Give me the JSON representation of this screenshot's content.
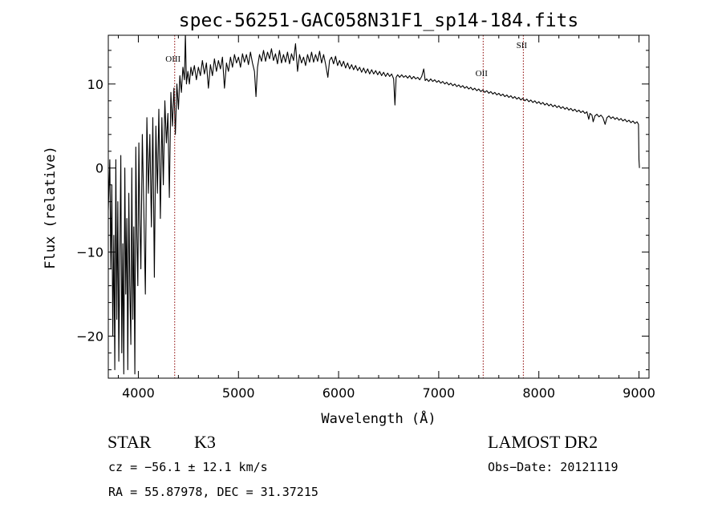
{
  "chart_data": {
    "type": "line",
    "title": "spec-56251-GAC058N31F1_sp14-184.fits",
    "xlabel": "Wavelength (Å)",
    "ylabel": "Flux (relative)",
    "xlim": [
      3700,
      9100
    ],
    "ylim": [
      -25,
      15.8
    ],
    "xticks": [
      4000,
      5000,
      6000,
      7000,
      8000,
      9000
    ],
    "yticks": [
      -20,
      -10,
      0,
      10
    ],
    "grid": false,
    "series": [
      {
        "points": [
          [
            3700,
            -5
          ],
          [
            3715,
            1
          ],
          [
            3725,
            -12
          ],
          [
            3735,
            -2
          ],
          [
            3745,
            -20
          ],
          [
            3755,
            -8
          ],
          [
            3765,
            -24
          ],
          [
            3775,
            1
          ],
          [
            3785,
            -18
          ],
          [
            3795,
            -4
          ],
          [
            3805,
            -23
          ],
          [
            3815,
            -10
          ],
          [
            3825,
            1.5
          ],
          [
            3835,
            -22
          ],
          [
            3845,
            -9
          ],
          [
            3855,
            -24.5
          ],
          [
            3865,
            0
          ],
          [
            3875,
            -15
          ],
          [
            3885,
            -6
          ],
          [
            3895,
            -24
          ],
          [
            3905,
            -3
          ],
          [
            3915,
            -14
          ],
          [
            3925,
            -21
          ],
          [
            3935,
            0
          ],
          [
            3945,
            -18
          ],
          [
            3955,
            -7
          ],
          [
            3965,
            -24.5
          ],
          [
            3975,
            2.5
          ],
          [
            3985,
            -8
          ],
          [
            3995,
            -14
          ],
          [
            4005,
            3
          ],
          [
            4015,
            -6
          ],
          [
            4025,
            -12
          ],
          [
            4040,
            4
          ],
          [
            4055,
            -5
          ],
          [
            4070,
            -15
          ],
          [
            4085,
            6
          ],
          [
            4100,
            -3
          ],
          [
            4115,
            4
          ],
          [
            4130,
            -7
          ],
          [
            4145,
            6
          ],
          [
            4160,
            -13
          ],
          [
            4175,
            5
          ],
          [
            4190,
            -3
          ],
          [
            4205,
            7
          ],
          [
            4220,
            -6
          ],
          [
            4235,
            6
          ],
          [
            4250,
            -2
          ],
          [
            4265,
            8
          ],
          [
            4280,
            3
          ],
          [
            4295,
            6.5
          ],
          [
            4310,
            -3.5
          ],
          [
            4325,
            9
          ],
          [
            4340,
            5
          ],
          [
            4355,
            9.5
          ],
          [
            4370,
            4
          ],
          [
            4385,
            10
          ],
          [
            4400,
            7
          ],
          [
            4415,
            11
          ],
          [
            4430,
            9
          ],
          [
            4445,
            12
          ],
          [
            4460,
            10.5
          ],
          [
            4470,
            16
          ],
          [
            4480,
            10
          ],
          [
            4495,
            11.5
          ],
          [
            4510,
            10
          ],
          [
            4525,
            12
          ],
          [
            4540,
            11
          ],
          [
            4560,
            12.2
          ],
          [
            4580,
            10.5
          ],
          [
            4600,
            12
          ],
          [
            4620,
            11
          ],
          [
            4640,
            12.8
          ],
          [
            4660,
            11.2
          ],
          [
            4680,
            12.5
          ],
          [
            4700,
            9.5
          ],
          [
            4720,
            12.3
          ],
          [
            4740,
            11
          ],
          [
            4760,
            13
          ],
          [
            4780,
            11.5
          ],
          [
            4800,
            12.8
          ],
          [
            4820,
            11.8
          ],
          [
            4840,
            13.2
          ],
          [
            4860,
            9.5
          ],
          [
            4880,
            12.5
          ],
          [
            4900,
            11.5
          ],
          [
            4920,
            13.2
          ],
          [
            4940,
            12
          ],
          [
            4960,
            13.5
          ],
          [
            4980,
            12.5
          ],
          [
            5000,
            13.2
          ],
          [
            5020,
            12
          ],
          [
            5040,
            13.6
          ],
          [
            5060,
            12.6
          ],
          [
            5080,
            13.5
          ],
          [
            5100,
            12.3
          ],
          [
            5120,
            13.8
          ],
          [
            5140,
            12.5
          ],
          [
            5160,
            11.5
          ],
          [
            5175,
            8.5
          ],
          [
            5190,
            12
          ],
          [
            5210,
            13.5
          ],
          [
            5230,
            12.7
          ],
          [
            5250,
            14
          ],
          [
            5270,
            12.7
          ],
          [
            5290,
            13.8
          ],
          [
            5310,
            13
          ],
          [
            5330,
            14.2
          ],
          [
            5350,
            12.8
          ],
          [
            5370,
            13.6
          ],
          [
            5390,
            12.4
          ],
          [
            5410,
            14
          ],
          [
            5430,
            12.5
          ],
          [
            5450,
            13.5
          ],
          [
            5470,
            12.6
          ],
          [
            5490,
            13.8
          ],
          [
            5510,
            12.4
          ],
          [
            5530,
            13.6
          ],
          [
            5550,
            12.8
          ],
          [
            5570,
            14.8
          ],
          [
            5590,
            11.5
          ],
          [
            5610,
            13.5
          ],
          [
            5630,
            12.5
          ],
          [
            5650,
            13.2
          ],
          [
            5670,
            12.2
          ],
          [
            5690,
            13.5
          ],
          [
            5710,
            12.6
          ],
          [
            5730,
            13.8
          ],
          [
            5750,
            12.6
          ],
          [
            5770,
            13.5
          ],
          [
            5790,
            12.7
          ],
          [
            5810,
            13.9
          ],
          [
            5830,
            12.5
          ],
          [
            5850,
            13.5
          ],
          [
            5870,
            12.4
          ],
          [
            5893,
            10.8
          ],
          [
            5910,
            12.8
          ],
          [
            5930,
            13.2
          ],
          [
            5950,
            12.4
          ],
          [
            5970,
            13.3
          ],
          [
            5990,
            12.2
          ],
          [
            6010,
            12.8
          ],
          [
            6030,
            12.1
          ],
          [
            6050,
            12.7
          ],
          [
            6070,
            11.9
          ],
          [
            6090,
            12.5
          ],
          [
            6110,
            11.8
          ],
          [
            6130,
            12.3
          ],
          [
            6150,
            11.7
          ],
          [
            6170,
            12.2
          ],
          [
            6190,
            11.6
          ],
          [
            6210,
            12
          ],
          [
            6230,
            11.4
          ],
          [
            6250,
            11.9
          ],
          [
            6270,
            11.3
          ],
          [
            6290,
            11.8
          ],
          [
            6310,
            11.2
          ],
          [
            6330,
            11.7
          ],
          [
            6350,
            11.2
          ],
          [
            6370,
            11.6
          ],
          [
            6390,
            11.1
          ],
          [
            6410,
            11.5
          ],
          [
            6430,
            11
          ],
          [
            6450,
            11.4
          ],
          [
            6470,
            10.9
          ],
          [
            6490,
            11.3
          ],
          [
            6510,
            10.9
          ],
          [
            6530,
            11.2
          ],
          [
            6550,
            10.6
          ],
          [
            6563,
            7.5
          ],
          [
            6575,
            10.8
          ],
          [
            6590,
            11.1
          ],
          [
            6610,
            10.8
          ],
          [
            6630,
            11.1
          ],
          [
            6650,
            10.8
          ],
          [
            6670,
            11
          ],
          [
            6690,
            10.7
          ],
          [
            6710,
            11
          ],
          [
            6730,
            10.6
          ],
          [
            6750,
            10.9
          ],
          [
            6770,
            10.6
          ],
          [
            6790,
            10.8
          ],
          [
            6810,
            10.5
          ],
          [
            6830,
            10.9
          ],
          [
            6850,
            11.8
          ],
          [
            6865,
            10.4
          ],
          [
            6880,
            10.6
          ],
          [
            6900,
            10.3
          ],
          [
            6920,
            10.6
          ],
          [
            6940,
            10.3
          ],
          [
            6960,
            10.5
          ],
          [
            6980,
            10.2
          ],
          [
            7000,
            10.4
          ],
          [
            7020,
            10.1
          ],
          [
            7040,
            10.3
          ],
          [
            7060,
            10
          ],
          [
            7080,
            10.2
          ],
          [
            7100,
            9.9
          ],
          [
            7120,
            10.1
          ],
          [
            7140,
            9.8
          ],
          [
            7160,
            10
          ],
          [
            7180,
            9.7
          ],
          [
            7200,
            9.9
          ],
          [
            7220,
            9.6
          ],
          [
            7240,
            9.8
          ],
          [
            7260,
            9.5
          ],
          [
            7280,
            9.7
          ],
          [
            7300,
            9.4
          ],
          [
            7320,
            9.6
          ],
          [
            7340,
            9.3
          ],
          [
            7360,
            9.5
          ],
          [
            7380,
            9.2
          ],
          [
            7400,
            9.4
          ],
          [
            7420,
            9.1
          ],
          [
            7440,
            9.3
          ],
          [
            7460,
            9
          ],
          [
            7480,
            9.2
          ],
          [
            7500,
            8.9
          ],
          [
            7520,
            9.1
          ],
          [
            7540,
            8.8
          ],
          [
            7560,
            9
          ],
          [
            7580,
            8.7
          ],
          [
            7600,
            8.9
          ],
          [
            7620,
            8.6
          ],
          [
            7640,
            8.8
          ],
          [
            7660,
            8.5
          ],
          [
            7680,
            8.7
          ],
          [
            7700,
            8.4
          ],
          [
            7720,
            8.6
          ],
          [
            7740,
            8.3
          ],
          [
            7760,
            8.5
          ],
          [
            7780,
            8.2
          ],
          [
            7800,
            8.4
          ],
          [
            7820,
            8.1
          ],
          [
            7840,
            8.3
          ],
          [
            7860,
            8
          ],
          [
            7880,
            8.2
          ],
          [
            7900,
            7.9
          ],
          [
            7920,
            8.1
          ],
          [
            7940,
            7.8
          ],
          [
            7960,
            8
          ],
          [
            7980,
            7.7
          ],
          [
            8000,
            7.9
          ],
          [
            8020,
            7.6
          ],
          [
            8040,
            7.8
          ],
          [
            8060,
            7.5
          ],
          [
            8080,
            7.7
          ],
          [
            8100,
            7.4
          ],
          [
            8120,
            7.6
          ],
          [
            8140,
            7.3
          ],
          [
            8160,
            7.5
          ],
          [
            8180,
            7.2
          ],
          [
            8200,
            7.4
          ],
          [
            8220,
            7.1
          ],
          [
            8240,
            7.3
          ],
          [
            8260,
            7
          ],
          [
            8280,
            7.2
          ],
          [
            8300,
            6.9
          ],
          [
            8320,
            7.1
          ],
          [
            8340,
            6.8
          ],
          [
            8360,
            7
          ],
          [
            8380,
            6.7
          ],
          [
            8400,
            6.9
          ],
          [
            8420,
            6.6
          ],
          [
            8440,
            6.8
          ],
          [
            8460,
            6.5
          ],
          [
            8480,
            6.7
          ],
          [
            8498,
            5.8
          ],
          [
            8510,
            6.5
          ],
          [
            8530,
            6.3
          ],
          [
            8542,
            5.5
          ],
          [
            8560,
            6.2
          ],
          [
            8580,
            6.4
          ],
          [
            8600,
            6.1
          ],
          [
            8620,
            6.3
          ],
          [
            8640,
            6
          ],
          [
            8662,
            5.2
          ],
          [
            8680,
            6
          ],
          [
            8700,
            6.2
          ],
          [
            8720,
            5.9
          ],
          [
            8740,
            6.1
          ],
          [
            8760,
            5.8
          ],
          [
            8780,
            6
          ],
          [
            8800,
            5.7
          ],
          [
            8820,
            5.9
          ],
          [
            8840,
            5.6
          ],
          [
            8860,
            5.8
          ],
          [
            8880,
            5.5
          ],
          [
            8900,
            5.7
          ],
          [
            8920,
            5.4
          ],
          [
            8940,
            5.6
          ],
          [
            8960,
            5.3
          ],
          [
            8980,
            5.5
          ],
          [
            8995,
            5.2
          ],
          [
            9000,
            1
          ],
          [
            9005,
            0
          ]
        ]
      }
    ],
    "lines": [
      {
        "x": 4363,
        "label": "OIII"
      },
      {
        "x": 7444,
        "label": "OII"
      },
      {
        "x": 7845,
        "label": "SII"
      }
    ]
  },
  "info": {
    "object_type": "STAR",
    "subclass": "K3",
    "survey": "LAMOST DR2",
    "cz": "cz = −56.1 ± 12.1 km/s",
    "obs_date": "Obs−Date: 20121119",
    "coords": "RA =  55.87978, DEC =  31.37215"
  },
  "colors": {
    "spectrum": "#000000",
    "line_marker": "#8b0000",
    "axes": "#000000"
  }
}
